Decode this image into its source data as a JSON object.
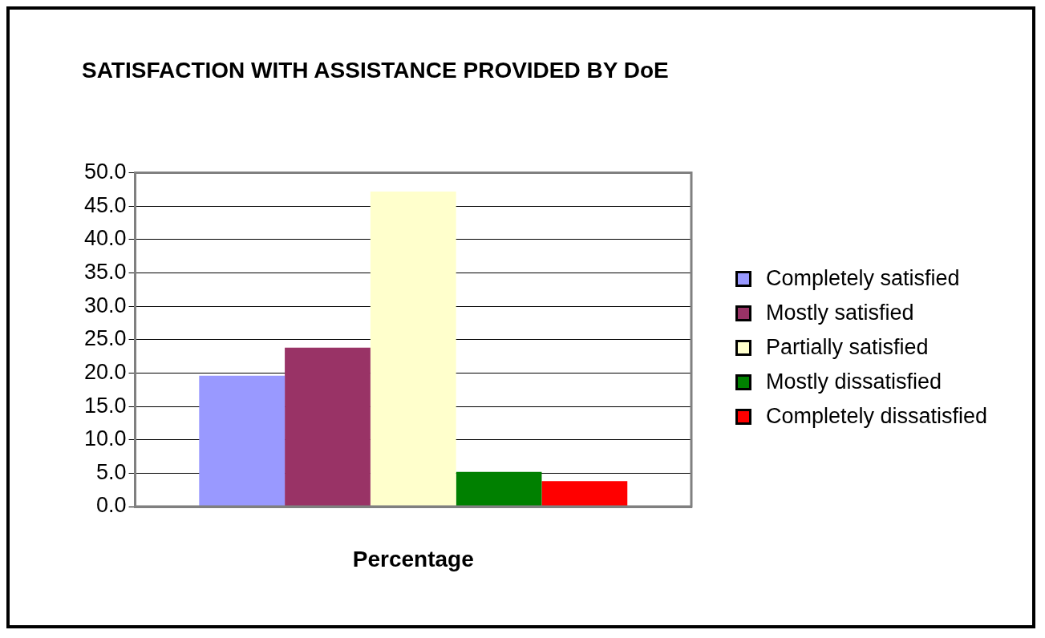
{
  "chart_data": {
    "type": "bar",
    "title": "SATISFACTION WITH ASSISTANCE PROVIDED BY DoE",
    "xlabel": "Percentage",
    "categories": [
      null
    ],
    "series": [
      {
        "name": "Completely satisfied",
        "color": "#9999ff",
        "values": [
          19.6
        ]
      },
      {
        "name": "Mostly satisfied",
        "color": "#993366",
        "values": [
          23.8
        ]
      },
      {
        "name": "Partially satisfied",
        "color": "#ffffcc",
        "values": [
          47.2
        ]
      },
      {
        "name": "Mostly dissatisfied",
        "color": "#008000",
        "values": [
          5.2
        ]
      },
      {
        "name": "Completely dissatisfied",
        "color": "#ff0000",
        "values": [
          3.8
        ]
      }
    ],
    "ylim": [
      0,
      50
    ],
    "yticks": [
      {
        "value": 0,
        "label": "0.0"
      },
      {
        "value": 5,
        "label": "5.0"
      },
      {
        "value": 10,
        "label": "10.0"
      },
      {
        "value": 15,
        "label": "15.0"
      },
      {
        "value": 20,
        "label": "20.0"
      },
      {
        "value": 25,
        "label": "25.0"
      },
      {
        "value": 30,
        "label": "30.0"
      },
      {
        "value": 35,
        "label": "35.0"
      },
      {
        "value": 40,
        "label": "40.0"
      },
      {
        "value": 45,
        "label": "45.0"
      },
      {
        "value": 50,
        "label": "50.0"
      }
    ],
    "grid": "y",
    "legend": "right"
  }
}
